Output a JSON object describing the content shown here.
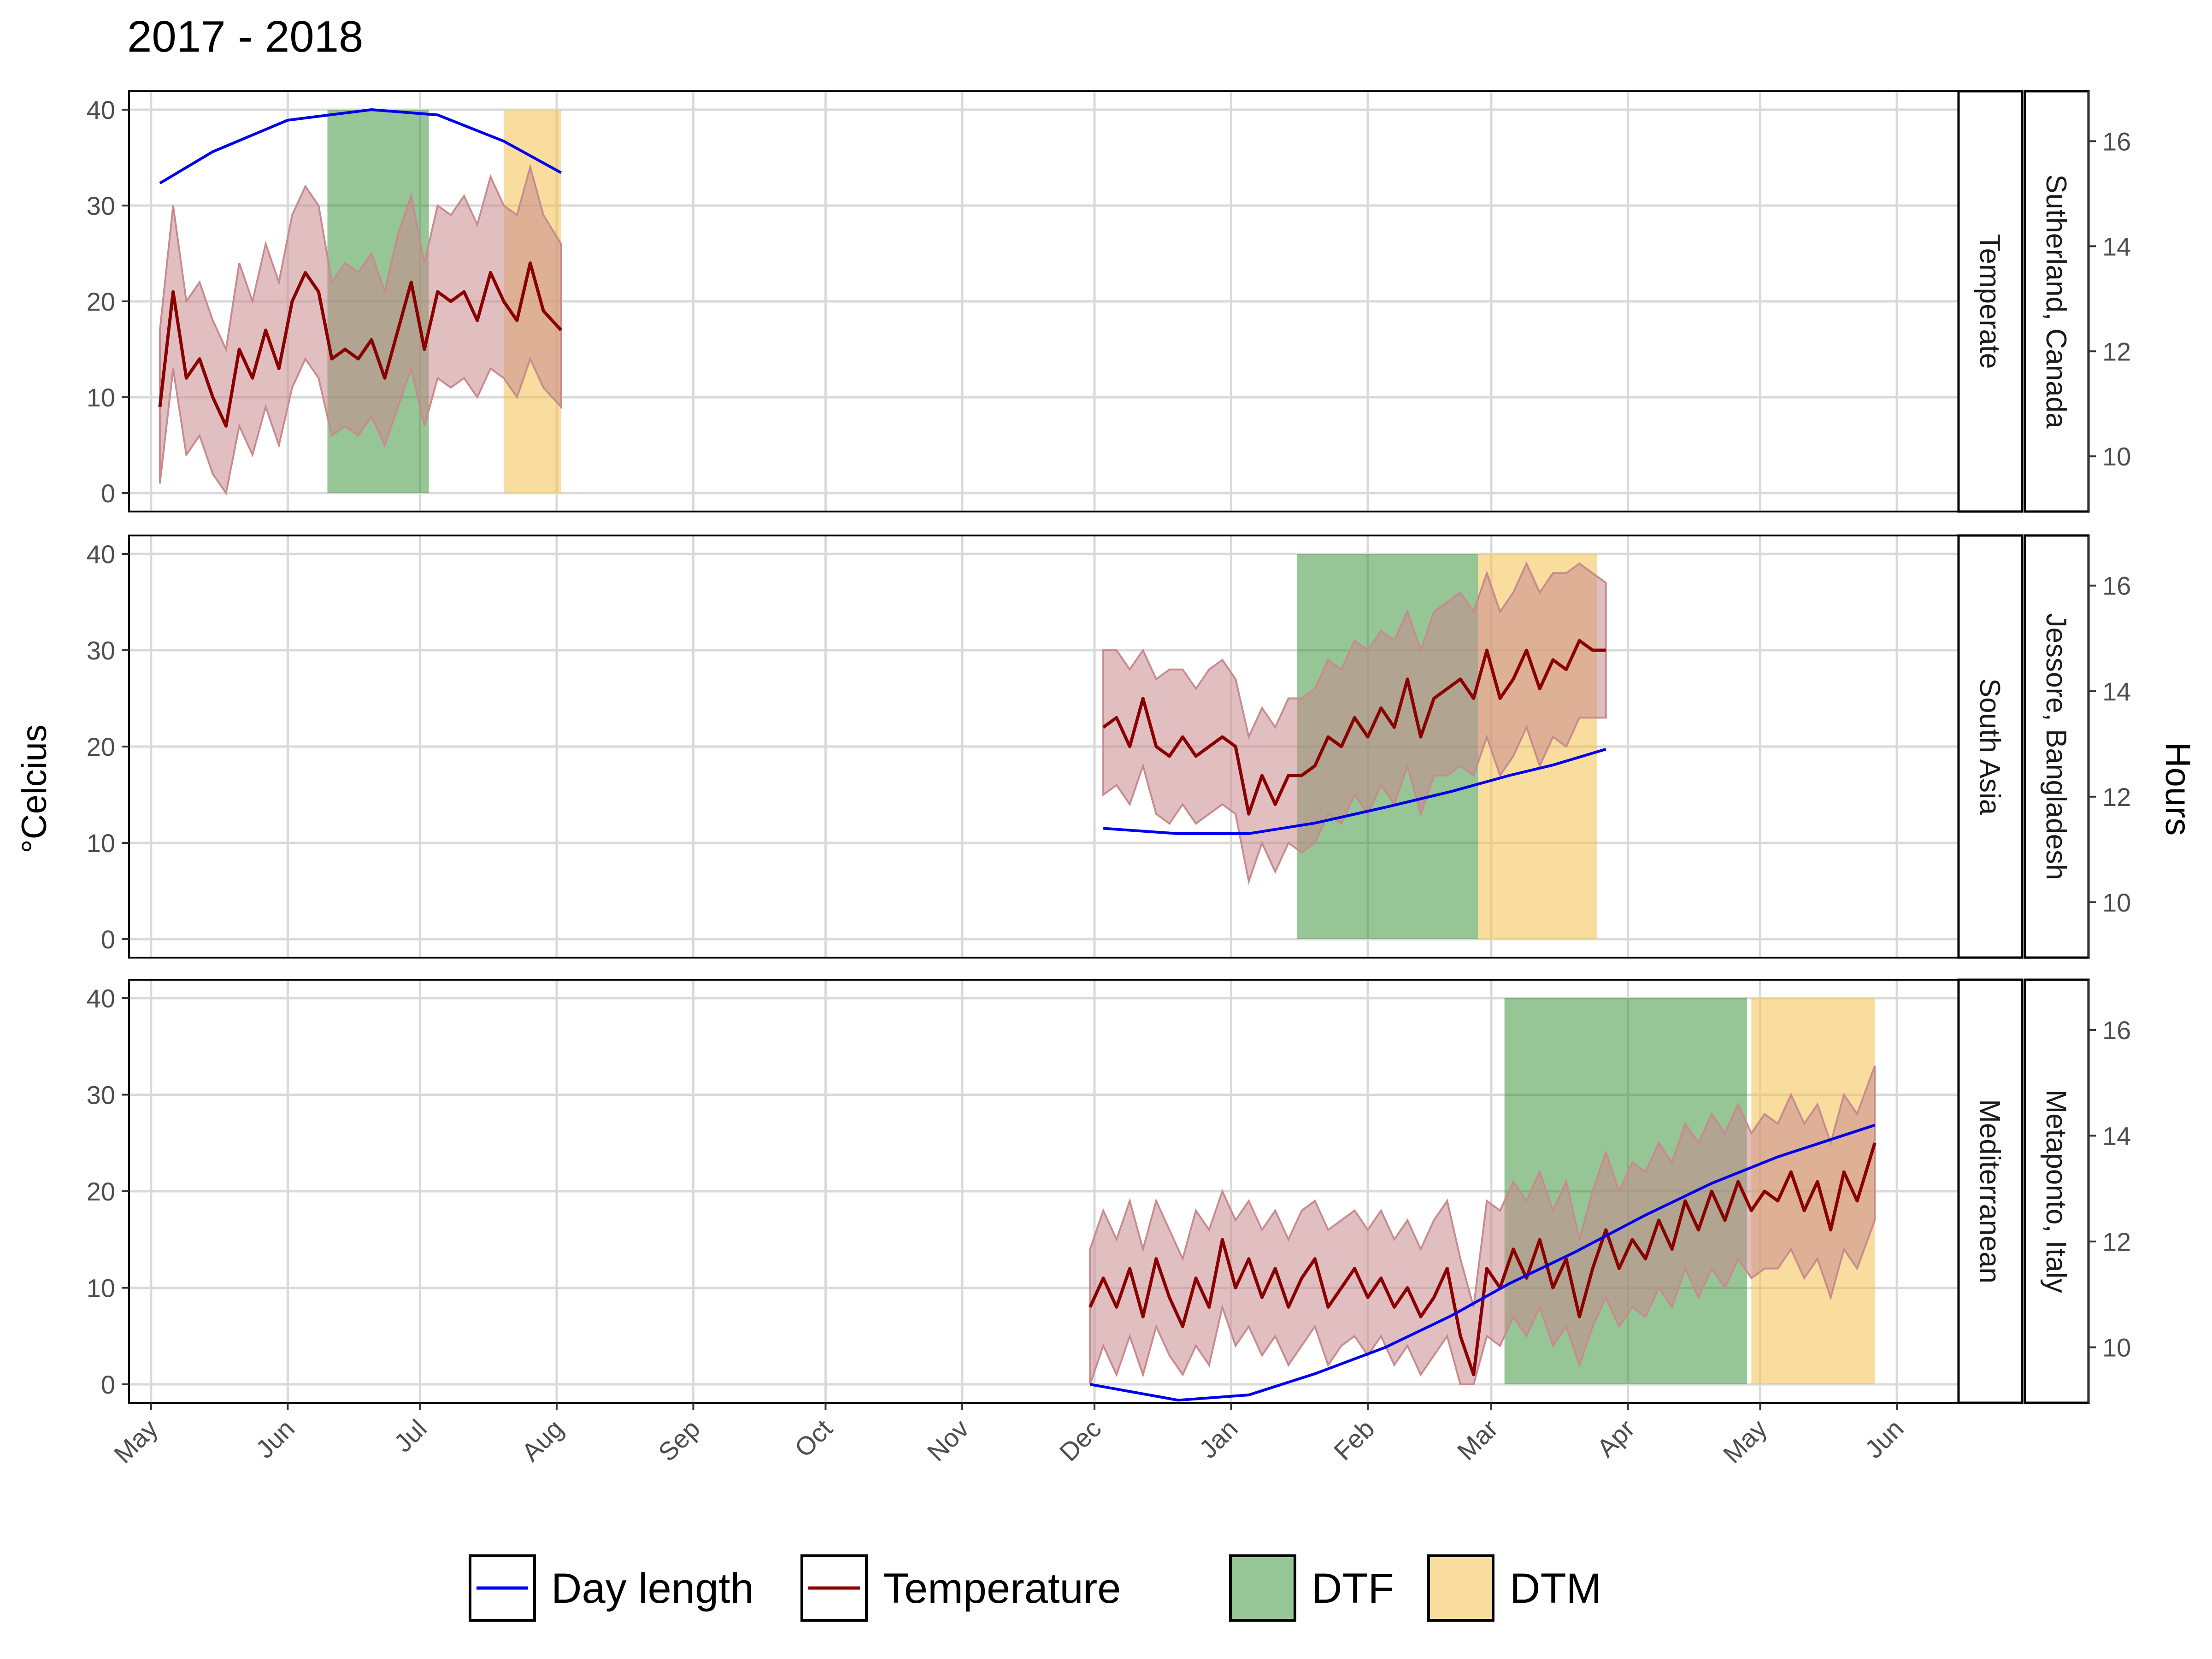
{
  "chart_data": {
    "type": "line",
    "title": "2017 - 2018",
    "ylabel": "°Celcius",
    "y2label": "Hours",
    "ylim": [
      0,
      40
    ],
    "y2lim": [
      9,
      17
    ],
    "yticks": [
      "0",
      "10",
      "20",
      "30",
      "40"
    ],
    "y2ticks": [
      "10",
      "12",
      "14",
      "16"
    ],
    "x_range": [
      "2017-04-26",
      "2018-06-15"
    ],
    "x_ticks": [
      {
        "label": "May",
        "date": "2017-05-01"
      },
      {
        "label": "Jun",
        "date": "2017-06-01"
      },
      {
        "label": "Jul",
        "date": "2017-07-01"
      },
      {
        "label": "Aug",
        "date": "2017-08-01"
      },
      {
        "label": "Sep",
        "date": "2017-09-01"
      },
      {
        "label": "Oct",
        "date": "2017-10-01"
      },
      {
        "label": "Nov",
        "date": "2017-11-01"
      },
      {
        "label": "Dec",
        "date": "2017-12-01"
      },
      {
        "label": "Jan",
        "date": "2018-01-01"
      },
      {
        "label": "Feb",
        "date": "2018-02-01"
      },
      {
        "label": "Mar",
        "date": "2018-03-01"
      },
      {
        "label": "Apr",
        "date": "2018-04-01"
      },
      {
        "label": "May",
        "date": "2018-05-01"
      },
      {
        "label": "Jun",
        "date": "2018-06-01"
      }
    ],
    "grid": true,
    "legend_position": "bottom",
    "legend": {
      "day_length": "Day length",
      "temperature": "Temperature",
      "dtf": "DTF",
      "dtm": "DTM"
    },
    "colors": {
      "day_length": "#0000ee",
      "temperature": "#8b0000",
      "temperature_band": "#c98a8e",
      "dtf": "#2e8b2e",
      "dtm": "#f2c14e",
      "grid": "#d9d9d9"
    },
    "panels": [
      {
        "region": "Temperate",
        "location": "Sutherland, Canada",
        "dtf": [
          "2017-06-10",
          "2017-07-03"
        ],
        "dtm": [
          "2017-07-20",
          "2017-08-02"
        ],
        "day_length": [
          [
            "2017-05-03",
            15.2
          ],
          [
            "2017-05-15",
            15.8
          ],
          [
            "2017-06-01",
            16.4
          ],
          [
            "2017-06-20",
            16.6
          ],
          [
            "2017-07-05",
            16.5
          ],
          [
            "2017-07-20",
            16.0
          ],
          [
            "2017-08-02",
            15.4
          ]
        ],
        "temperature": [
          [
            "2017-05-03",
            9,
            1,
            17
          ],
          [
            "2017-05-06",
            21,
            13,
            30
          ],
          [
            "2017-05-09",
            12,
            4,
            20
          ],
          [
            "2017-05-12",
            14,
            6,
            22
          ],
          [
            "2017-05-15",
            10,
            2,
            18
          ],
          [
            "2017-05-18",
            7,
            0,
            15
          ],
          [
            "2017-05-21",
            15,
            7,
            24
          ],
          [
            "2017-05-24",
            12,
            4,
            20
          ],
          [
            "2017-05-27",
            17,
            9,
            26
          ],
          [
            "2017-05-30",
            13,
            5,
            22
          ],
          [
            "2017-06-02",
            20,
            11,
            29
          ],
          [
            "2017-06-05",
            23,
            14,
            32
          ],
          [
            "2017-06-08",
            21,
            12,
            30
          ],
          [
            "2017-06-11",
            14,
            6,
            22
          ],
          [
            "2017-06-14",
            15,
            7,
            24
          ],
          [
            "2017-06-17",
            14,
            6,
            23
          ],
          [
            "2017-06-20",
            16,
            8,
            25
          ],
          [
            "2017-06-23",
            12,
            5,
            21
          ],
          [
            "2017-06-26",
            17,
            9,
            27
          ],
          [
            "2017-06-29",
            22,
            13,
            31
          ],
          [
            "2017-07-02",
            15,
            7,
            24
          ],
          [
            "2017-07-05",
            21,
            12,
            30
          ],
          [
            "2017-07-08",
            20,
            11,
            29
          ],
          [
            "2017-07-11",
            21,
            12,
            31
          ],
          [
            "2017-07-14",
            18,
            10,
            28
          ],
          [
            "2017-07-17",
            23,
            13,
            33
          ],
          [
            "2017-07-20",
            20,
            12,
            30
          ],
          [
            "2017-07-23",
            18,
            10,
            29
          ],
          [
            "2017-07-26",
            24,
            14,
            34
          ],
          [
            "2017-07-29",
            19,
            11,
            29
          ],
          [
            "2017-08-02",
            17,
            9,
            26
          ]
        ]
      },
      {
        "region": "South Asia",
        "location": "Jessore, Bangladesh",
        "dtf": [
          "2018-01-16",
          "2018-02-26"
        ],
        "dtm": [
          "2018-02-26",
          "2018-03-25"
        ],
        "day_length": [
          [
            "2017-12-03",
            11.4
          ],
          [
            "2017-12-20",
            11.3
          ],
          [
            "2018-01-05",
            11.3
          ],
          [
            "2018-01-20",
            11.5
          ],
          [
            "2018-02-05",
            11.8
          ],
          [
            "2018-02-20",
            12.1
          ],
          [
            "2018-03-05",
            12.4
          ],
          [
            "2018-03-15",
            12.6
          ],
          [
            "2018-03-27",
            12.9
          ]
        ],
        "temperature": [
          [
            "2017-12-03",
            22,
            15,
            30
          ],
          [
            "2017-12-06",
            23,
            16,
            30
          ],
          [
            "2017-12-09",
            20,
            14,
            28
          ],
          [
            "2017-12-12",
            25,
            18,
            30
          ],
          [
            "2017-12-15",
            20,
            13,
            27
          ],
          [
            "2017-12-18",
            19,
            12,
            28
          ],
          [
            "2017-12-21",
            21,
            14,
            28
          ],
          [
            "2017-12-24",
            19,
            12,
            26
          ],
          [
            "2017-12-27",
            20,
            13,
            28
          ],
          [
            "2017-12-30",
            21,
            14,
            29
          ],
          [
            "2018-01-02",
            20,
            13,
            27
          ],
          [
            "2018-01-05",
            13,
            6,
            21
          ],
          [
            "2018-01-08",
            17,
            10,
            24
          ],
          [
            "2018-01-11",
            14,
            7,
            22
          ],
          [
            "2018-01-14",
            17,
            10,
            25
          ],
          [
            "2018-01-17",
            17,
            9,
            25
          ],
          [
            "2018-01-20",
            18,
            10,
            26
          ],
          [
            "2018-01-23",
            21,
            13,
            29
          ],
          [
            "2018-01-26",
            20,
            12,
            28
          ],
          [
            "2018-01-29",
            23,
            15,
            31
          ],
          [
            "2018-02-01",
            21,
            13,
            30
          ],
          [
            "2018-02-04",
            24,
            16,
            32
          ],
          [
            "2018-02-07",
            22,
            14,
            31
          ],
          [
            "2018-02-10",
            27,
            18,
            34
          ],
          [
            "2018-02-13",
            21,
            13,
            30
          ],
          [
            "2018-02-16",
            25,
            17,
            34
          ],
          [
            "2018-02-19",
            26,
            17,
            35
          ],
          [
            "2018-02-22",
            27,
            18,
            36
          ],
          [
            "2018-02-25",
            25,
            17,
            34
          ],
          [
            "2018-02-28",
            30,
            21,
            38
          ],
          [
            "2018-03-03",
            25,
            17,
            34
          ],
          [
            "2018-03-06",
            27,
            19,
            36
          ],
          [
            "2018-03-09",
            30,
            22,
            39
          ],
          [
            "2018-03-12",
            26,
            18,
            36
          ],
          [
            "2018-03-15",
            29,
            21,
            38
          ],
          [
            "2018-03-18",
            28,
            20,
            38
          ],
          [
            "2018-03-21",
            31,
            23,
            39
          ],
          [
            "2018-03-24",
            30,
            23,
            38
          ],
          [
            "2018-03-27",
            30,
            23,
            37
          ]
        ]
      },
      {
        "region": "Mediterranean",
        "location": "Metaponto, Italy",
        "dtf": [
          "2018-03-04",
          "2018-04-28"
        ],
        "dtm": [
          "2018-04-29",
          "2018-05-27"
        ],
        "day_length": [
          [
            "2017-11-30",
            9.3
          ],
          [
            "2017-12-20",
            9.0
          ],
          [
            "2018-01-05",
            9.1
          ],
          [
            "2018-01-20",
            9.5
          ],
          [
            "2018-02-05",
            10.0
          ],
          [
            "2018-02-20",
            10.6
          ],
          [
            "2018-03-05",
            11.2
          ],
          [
            "2018-03-20",
            11.8
          ],
          [
            "2018-04-05",
            12.5
          ],
          [
            "2018-04-20",
            13.1
          ],
          [
            "2018-05-05",
            13.6
          ],
          [
            "2018-05-27",
            14.2
          ]
        ],
        "temperature": [
          [
            "2017-11-30",
            8,
            0,
            14
          ],
          [
            "2017-12-03",
            11,
            4,
            18
          ],
          [
            "2017-12-06",
            8,
            1,
            15
          ],
          [
            "2017-12-09",
            12,
            5,
            19
          ],
          [
            "2017-12-12",
            7,
            1,
            14
          ],
          [
            "2017-12-15",
            13,
            6,
            19
          ],
          [
            "2017-12-18",
            9,
            3,
            16
          ],
          [
            "2017-12-21",
            6,
            1,
            13
          ],
          [
            "2017-12-24",
            11,
            4,
            18
          ],
          [
            "2017-12-27",
            8,
            2,
            16
          ],
          [
            "2017-12-30",
            15,
            8,
            20
          ],
          [
            "2018-01-02",
            10,
            4,
            17
          ],
          [
            "2018-01-05",
            13,
            6,
            19
          ],
          [
            "2018-01-08",
            9,
            3,
            16
          ],
          [
            "2018-01-11",
            12,
            5,
            18
          ],
          [
            "2018-01-14",
            8,
            2,
            15
          ],
          [
            "2018-01-17",
            11,
            4,
            18
          ],
          [
            "2018-01-20",
            13,
            6,
            19
          ],
          [
            "2018-01-23",
            8,
            2,
            16
          ],
          [
            "2018-01-26",
            10,
            4,
            17
          ],
          [
            "2018-01-29",
            12,
            5,
            18
          ],
          [
            "2018-02-01",
            9,
            3,
            16
          ],
          [
            "2018-02-04",
            11,
            5,
            18
          ],
          [
            "2018-02-07",
            8,
            2,
            15
          ],
          [
            "2018-02-10",
            10,
            4,
            17
          ],
          [
            "2018-02-13",
            7,
            1,
            14
          ],
          [
            "2018-02-16",
            9,
            3,
            17
          ],
          [
            "2018-02-19",
            12,
            5,
            19
          ],
          [
            "2018-02-22",
            5,
            0,
            13
          ],
          [
            "2018-02-25",
            1,
            0,
            8
          ],
          [
            "2018-02-28",
            12,
            5,
            19
          ],
          [
            "2018-03-03",
            10,
            4,
            18
          ],
          [
            "2018-03-06",
            14,
            7,
            21
          ],
          [
            "2018-03-09",
            11,
            5,
            19
          ],
          [
            "2018-03-12",
            15,
            8,
            22
          ],
          [
            "2018-03-15",
            10,
            4,
            18
          ],
          [
            "2018-03-18",
            13,
            6,
            21
          ],
          [
            "2018-03-21",
            7,
            2,
            15
          ],
          [
            "2018-03-24",
            12,
            6,
            20
          ],
          [
            "2018-03-27",
            16,
            9,
            24
          ],
          [
            "2018-03-30",
            12,
            6,
            20
          ],
          [
            "2018-04-02",
            15,
            8,
            23
          ],
          [
            "2018-04-05",
            13,
            7,
            22
          ],
          [
            "2018-04-08",
            17,
            10,
            25
          ],
          [
            "2018-04-11",
            14,
            8,
            23
          ],
          [
            "2018-04-14",
            19,
            12,
            27
          ],
          [
            "2018-04-17",
            16,
            9,
            25
          ],
          [
            "2018-04-20",
            20,
            12,
            28
          ],
          [
            "2018-04-23",
            17,
            10,
            26
          ],
          [
            "2018-04-26",
            21,
            13,
            29
          ],
          [
            "2018-04-29",
            18,
            11,
            26
          ],
          [
            "2018-05-02",
            20,
            12,
            28
          ],
          [
            "2018-05-05",
            19,
            12,
            27
          ],
          [
            "2018-05-08",
            22,
            14,
            30
          ],
          [
            "2018-05-11",
            18,
            11,
            27
          ],
          [
            "2018-05-14",
            21,
            13,
            29
          ],
          [
            "2018-05-17",
            16,
            9,
            25
          ],
          [
            "2018-05-20",
            22,
            14,
            30
          ],
          [
            "2018-05-23",
            19,
            12,
            28
          ],
          [
            "2018-05-27",
            25,
            17,
            33
          ]
        ]
      }
    ]
  }
}
